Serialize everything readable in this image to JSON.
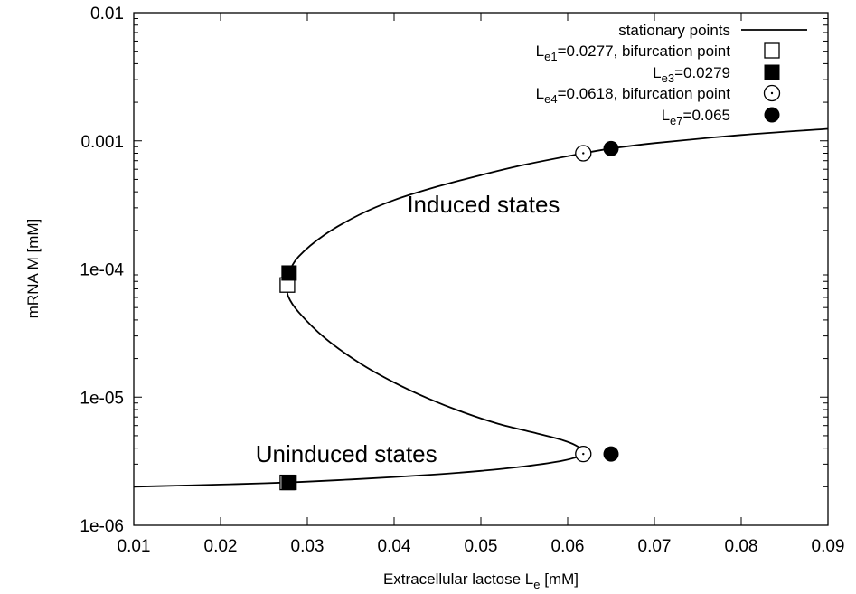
{
  "chart_data": {
    "type": "line",
    "xlabel": "Extracellular lactose",
    "xlabel_symbol": "L",
    "xlabel_sub": "e",
    "xlabel_unit": "[mM]",
    "ylabel": "mRNA M [mM]",
    "xlim": [
      0.01,
      0.09
    ],
    "ylim": [
      1e-06,
      0.01
    ],
    "yscale": "log",
    "grid": false,
    "legend_position": "top-right",
    "x_ticks": [
      {
        "value": 0.01,
        "label": "0.01"
      },
      {
        "value": 0.02,
        "label": "0.02"
      },
      {
        "value": 0.03,
        "label": "0.03"
      },
      {
        "value": 0.04,
        "label": "0.04"
      },
      {
        "value": 0.05,
        "label": "0.05"
      },
      {
        "value": 0.06,
        "label": "0.06"
      },
      {
        "value": 0.07,
        "label": "0.07"
      },
      {
        "value": 0.08,
        "label": "0.08"
      },
      {
        "value": 0.09,
        "label": "0.09"
      }
    ],
    "y_ticks": [
      {
        "value": 1e-06,
        "label": "1e-06"
      },
      {
        "value": 1e-05,
        "label": "1e-05"
      },
      {
        "value": 0.0001,
        "label": "1e-04"
      },
      {
        "value": 0.001,
        "label": "0.001"
      },
      {
        "value": 0.01,
        "label": "0.01"
      }
    ],
    "series": [
      {
        "name": "stationary points",
        "style": "line",
        "color": "#000000",
        "x": [
          0.01,
          0.015,
          0.02,
          0.025,
          0.0277,
          0.03,
          0.035,
          0.04,
          0.045,
          0.05,
          0.055,
          0.0595,
          0.0618,
          0.0612,
          0.0595,
          0.056,
          0.052,
          0.048,
          0.044,
          0.04,
          0.036,
          0.032,
          0.029,
          0.0278,
          0.0277,
          0.0279,
          0.029,
          0.032,
          0.036,
          0.04,
          0.045,
          0.05,
          0.055,
          0.0618,
          0.065,
          0.07,
          0.08,
          0.09
        ],
        "y": [
          2e-06,
          2.04e-06,
          2.08e-06,
          2.13e-06,
          2.16e-06,
          2.19e-06,
          2.28e-06,
          2.38e-06,
          2.5e-06,
          2.66e-06,
          2.88e-06,
          3.2e-06,
          3.6e-06,
          4.1e-06,
          4.6e-06,
          5.3e-06,
          6.2e-06,
          7.6e-06,
          9.7e-06,
          1.3e-05,
          1.85e-05,
          2.9e-05,
          4.6e-05,
          6.1e-05,
          7.5e-05,
          9.3e-05,
          0.000125,
          0.000185,
          0.000265,
          0.000345,
          0.00044,
          0.00054,
          0.00065,
          0.0008,
          0.00087,
          0.00096,
          0.00111,
          0.00124
        ]
      },
      {
        "name_parts": [
          "L",
          "e1",
          "=0.0277, bifurcation point"
        ],
        "style": "open-square",
        "points": [
          {
            "x": 0.0277,
            "y": 7.5e-05
          },
          {
            "x": 0.0277,
            "y": 2.16e-06
          }
        ]
      },
      {
        "name_parts": [
          "L",
          "e3",
          "=0.0279"
        ],
        "style": "filled-square",
        "points": [
          {
            "x": 0.0279,
            "y": 9.3e-05
          },
          {
            "x": 0.0279,
            "y": 2.16e-06
          }
        ]
      },
      {
        "name_parts": [
          "L",
          "e4",
          "=0.0618, bifurcation point"
        ],
        "style": "open-circle",
        "points": [
          {
            "x": 0.0618,
            "y": 0.0008
          },
          {
            "x": 0.0618,
            "y": 3.6e-06
          }
        ]
      },
      {
        "name_parts": [
          "L",
          "e7",
          "=0.065"
        ],
        "style": "filled-circle",
        "points": [
          {
            "x": 0.065,
            "y": 0.00087
          },
          {
            "x": 0.065,
            "y": 3.6e-06
          }
        ]
      }
    ],
    "annotations": [
      {
        "text": "Induced states",
        "x": 0.0503,
        "y": 0.00032
      },
      {
        "text": "Uninduced states",
        "x": 0.0345,
        "y": 3.6e-06
      }
    ]
  }
}
